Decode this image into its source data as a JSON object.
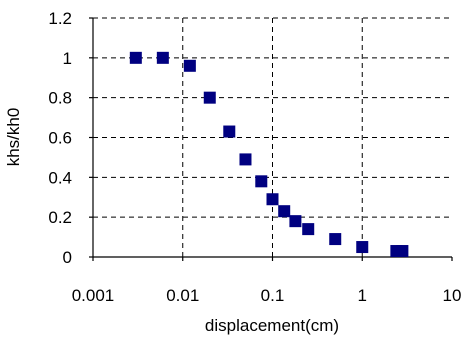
{
  "chart_data": {
    "type": "scatter",
    "xlabel": "displacement(cm)",
    "ylabel": "khs/kh0",
    "xscale": "log",
    "xlim": [
      0.001,
      10
    ],
    "ylim": [
      0,
      1.2
    ],
    "x_ticks": [
      0.001,
      0.01,
      0.1,
      1,
      10
    ],
    "x_tick_labels": [
      "0.001",
      "0.01",
      "0.1",
      "1",
      "10"
    ],
    "y_ticks": [
      0,
      0.2,
      0.4,
      0.6,
      0.8,
      1,
      1.2
    ],
    "y_tick_labels": [
      "0",
      "0.2",
      "0.4",
      "0.6",
      "0.8",
      "1",
      "1.2"
    ],
    "grid": true,
    "marker": "square",
    "marker_color": "#000080",
    "points": [
      {
        "x": 0.003,
        "y": 1.0
      },
      {
        "x": 0.006,
        "y": 1.0
      },
      {
        "x": 0.012,
        "y": 0.96
      },
      {
        "x": 0.02,
        "y": 0.8
      },
      {
        "x": 0.033,
        "y": 0.63
      },
      {
        "x": 0.05,
        "y": 0.49
      },
      {
        "x": 0.075,
        "y": 0.38
      },
      {
        "x": 0.1,
        "y": 0.29
      },
      {
        "x": 0.135,
        "y": 0.23
      },
      {
        "x": 0.18,
        "y": 0.18
      },
      {
        "x": 0.25,
        "y": 0.14
      },
      {
        "x": 0.5,
        "y": 0.09
      },
      {
        "x": 1.0,
        "y": 0.05
      },
      {
        "x": 2.4,
        "y": 0.03
      },
      {
        "x": 2.8,
        "y": 0.03
      }
    ]
  }
}
